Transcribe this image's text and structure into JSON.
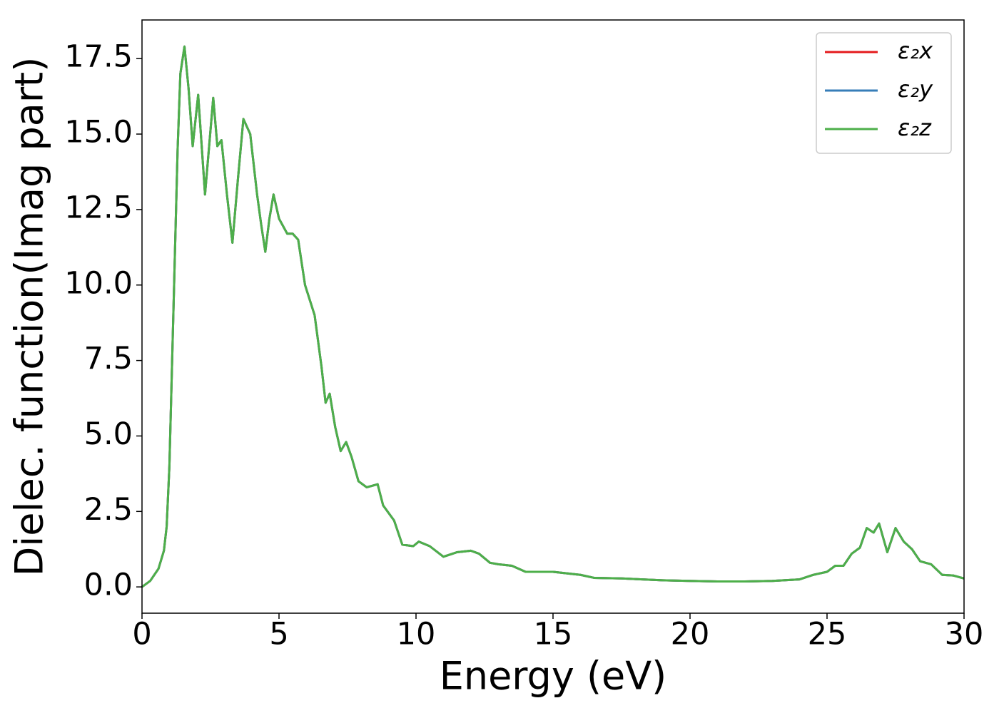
{
  "chart_data": {
    "type": "line",
    "xlabel": "Energy (eV)",
    "ylabel": "Dielec. function(Imag part)",
    "x": [
      0,
      0.3,
      0.6,
      0.8,
      0.9,
      1.0,
      1.1,
      1.2,
      1.3,
      1.4,
      1.55,
      1.7,
      1.85,
      2.05,
      2.3,
      2.6,
      2.75,
      2.9,
      3.1,
      3.3,
      3.5,
      3.7,
      3.95,
      4.2,
      4.35,
      4.5,
      4.65,
      4.8,
      5.0,
      5.3,
      5.5,
      5.7,
      5.95,
      6.3,
      6.55,
      6.7,
      6.85,
      7.05,
      7.25,
      7.45,
      7.65,
      7.9,
      8.2,
      8.6,
      8.8,
      9.2,
      9.5,
      9.9,
      10.1,
      10.5,
      11.0,
      11.5,
      12.0,
      12.3,
      12.7,
      13.0,
      13.5,
      14.0,
      14.5,
      15,
      16,
      16.5,
      17.5,
      19,
      20,
      21,
      22,
      23,
      24,
      24.5,
      25,
      25.3,
      25.6,
      25.9,
      26.2,
      26.45,
      26.7,
      26.9,
      27.2,
      27.5,
      27.8,
      28.1,
      28.4,
      28.8,
      29.2,
      29.6,
      30
    ],
    "series": [
      {
        "name": "ε₂x",
        "color": "#e41a1c",
        "values": [
          0.0,
          0.2,
          0.6,
          1.2,
          2.0,
          4.0,
          7.5,
          11,
          14.5,
          17.0,
          17.9,
          16.5,
          14.6,
          16.3,
          13.0,
          16.2,
          14.6,
          14.8,
          13.0,
          11.4,
          13.5,
          15.5,
          15.0,
          13.0,
          12.0,
          11.1,
          12.2,
          13.0,
          12.2,
          11.7,
          11.7,
          11.5,
          10.0,
          9.0,
          7.3,
          6.1,
          6.4,
          5.3,
          4.5,
          4.8,
          4.3,
          3.5,
          3.3,
          3.4,
          2.7,
          2.2,
          1.4,
          1.35,
          1.5,
          1.35,
          1.0,
          1.15,
          1.2,
          1.1,
          0.8,
          0.75,
          0.7,
          0.5,
          0.5,
          0.5,
          0.4,
          0.3,
          0.28,
          0.22,
          0.2,
          0.18,
          0.18,
          0.2,
          0.25,
          0.4,
          0.5,
          0.7,
          0.7,
          1.1,
          1.3,
          1.95,
          1.8,
          2.1,
          1.15,
          1.95,
          1.5,
          1.25,
          0.85,
          0.75,
          0.4,
          0.38,
          0.28
        ]
      },
      {
        "name": "ε₂y",
        "color": "#377eb8",
        "values": [
          0.0,
          0.2,
          0.6,
          1.2,
          2.0,
          4.0,
          7.5,
          11,
          14.5,
          17.0,
          17.9,
          16.5,
          14.6,
          16.3,
          13.0,
          16.2,
          14.6,
          14.8,
          13.0,
          11.4,
          13.5,
          15.5,
          15.0,
          13.0,
          12.0,
          11.1,
          12.2,
          13.0,
          12.2,
          11.7,
          11.7,
          11.5,
          10.0,
          9.0,
          7.3,
          6.1,
          6.4,
          5.3,
          4.5,
          4.8,
          4.3,
          3.5,
          3.3,
          3.4,
          2.7,
          2.2,
          1.4,
          1.35,
          1.5,
          1.35,
          1.0,
          1.15,
          1.2,
          1.1,
          0.8,
          0.75,
          0.7,
          0.5,
          0.5,
          0.5,
          0.4,
          0.3,
          0.28,
          0.22,
          0.2,
          0.18,
          0.18,
          0.2,
          0.25,
          0.4,
          0.5,
          0.7,
          0.7,
          1.1,
          1.3,
          1.95,
          1.8,
          2.1,
          1.15,
          1.95,
          1.5,
          1.25,
          0.85,
          0.75,
          0.4,
          0.38,
          0.28
        ]
      },
      {
        "name": "ε₂z",
        "color": "#4daf4a",
        "values": [
          0.0,
          0.2,
          0.6,
          1.2,
          2.0,
          4.0,
          7.5,
          11,
          14.5,
          17.0,
          17.9,
          16.5,
          14.6,
          16.3,
          13.0,
          16.2,
          14.6,
          14.8,
          13.0,
          11.4,
          13.5,
          15.5,
          15.0,
          13.0,
          12.0,
          11.1,
          12.2,
          13.0,
          12.2,
          11.7,
          11.7,
          11.5,
          10.0,
          9.0,
          7.3,
          6.1,
          6.4,
          5.3,
          4.5,
          4.8,
          4.3,
          3.5,
          3.3,
          3.4,
          2.7,
          2.2,
          1.4,
          1.35,
          1.5,
          1.35,
          1.0,
          1.15,
          1.2,
          1.1,
          0.8,
          0.75,
          0.7,
          0.5,
          0.5,
          0.5,
          0.4,
          0.3,
          0.28,
          0.22,
          0.2,
          0.18,
          0.18,
          0.2,
          0.25,
          0.4,
          0.5,
          0.7,
          0.7,
          1.1,
          1.3,
          1.95,
          1.8,
          2.1,
          1.15,
          1.95,
          1.5,
          1.25,
          0.85,
          0.75,
          0.4,
          0.38,
          0.28
        ]
      }
    ],
    "xlim": [
      0,
      30
    ],
    "xticks": [
      0,
      5,
      10,
      15,
      20,
      25,
      30
    ],
    "ylim": [
      -0.87,
      18.78
    ],
    "yticks": [
      {
        "value": 0,
        "label": "0.0"
      },
      2.5,
      {
        "value": 5,
        "label": "5.0"
      },
      7.5,
      {
        "value": 10,
        "label": "10.0"
      },
      12.5,
      {
        "value": 15,
        "label": "15.0"
      },
      17.5
    ],
    "grid": false,
    "legend": "upper right"
  }
}
